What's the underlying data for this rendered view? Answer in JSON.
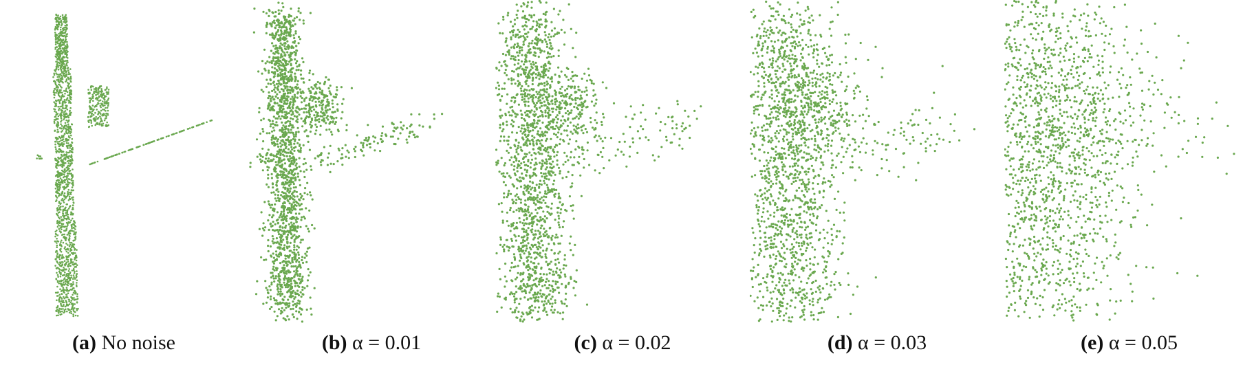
{
  "colors": {
    "point": "#6aa84f",
    "caption": "#111111"
  },
  "panels": [
    {
      "tag": "(a)",
      "label": "No noise",
      "noise_alpha": 0
    },
    {
      "tag": "(b)",
      "label": "α = 0.01",
      "noise_alpha": 0.01
    },
    {
      "tag": "(c)",
      "label": "α = 0.02",
      "noise_alpha": 0.02
    },
    {
      "tag": "(d)",
      "label": "α = 0.03",
      "noise_alpha": 0.03
    },
    {
      "tag": "(e)",
      "label": "α = 0.05",
      "noise_alpha": 0.05
    }
  ]
}
